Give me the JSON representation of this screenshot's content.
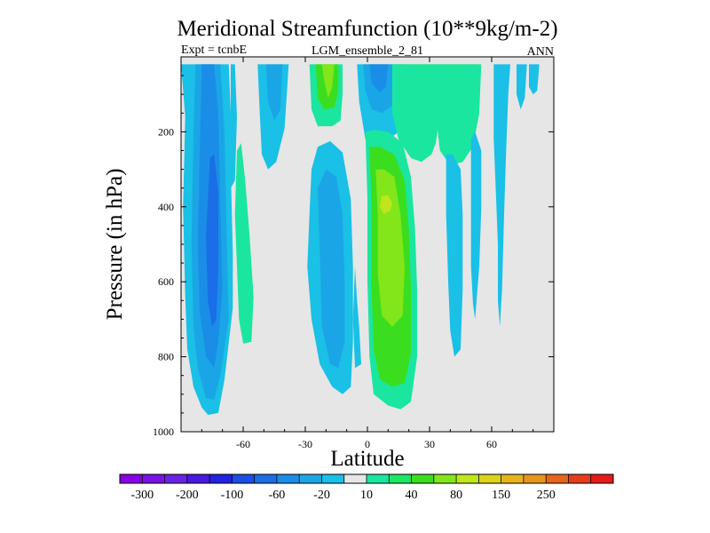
{
  "chart_data": {
    "type": "heatmap",
    "title": "Meridional Streamfunction (10**9kg/m-2)",
    "left_label": "Expt = tcnbE",
    "center_label": "LGM_ensemble_2_81",
    "right_label": "ANN",
    "xlabel": "Latitude",
    "ylabel": "Pressure (in hPa)",
    "xlim": [
      -90,
      90
    ],
    "ylim": [
      0,
      1000
    ],
    "y_inverted": true,
    "xticks": [
      -60,
      -30,
      0,
      30,
      60
    ],
    "xtick_labels": [
      "-60",
      "-30",
      "0",
      "30",
      "60"
    ],
    "yticks": [
      200,
      400,
      600,
      800,
      1000
    ],
    "ytick_labels": [
      "200",
      "400",
      "600",
      "800",
      "1000"
    ],
    "background_color": "#e6e6e6",
    "colorbar": {
      "colors": [
        "#8a00e6",
        "#7a12e6",
        "#6a22e6",
        "#4a1ae0",
        "#2222e0",
        "#1a4ee6",
        "#1a6ee6",
        "#1a8ee6",
        "#1aa6e6",
        "#1ac0e6",
        "#e6e6e6",
        "#1ae6a0",
        "#1ee664",
        "#3ade1e",
        "#82e61a",
        "#bee61a",
        "#dcd21a",
        "#e6b41a",
        "#e6961a",
        "#e6641a",
        "#e63c1a",
        "#e61a1a"
      ],
      "tick_labels": [
        "-300",
        "-200",
        "-100",
        "-60",
        "-20",
        "10",
        "40",
        "80",
        "150",
        "250"
      ]
    },
    "regions": [
      {
        "name": "sh-cell-level-1",
        "color": "#1ac0e6",
        "points": [
          [
            -90,
            20
          ],
          [
            -88,
            160
          ],
          [
            -89,
            400
          ],
          [
            -88,
            640
          ],
          [
            -87,
            780
          ],
          [
            -84,
            880
          ],
          [
            -80,
            935
          ],
          [
            -77,
            955
          ],
          [
            -72,
            950
          ],
          [
            -69,
            860
          ],
          [
            -65,
            670
          ],
          [
            -65,
            520
          ],
          [
            -66,
            300
          ],
          [
            -66,
            150
          ],
          [
            -67,
            20
          ]
        ]
      },
      {
        "name": "sh-cell-level-2",
        "color": "#1aa6e6",
        "points": [
          [
            -83,
            20
          ],
          [
            -84,
            200
          ],
          [
            -85,
            500
          ],
          [
            -84,
            720
          ],
          [
            -82,
            830
          ],
          [
            -78,
            910
          ],
          [
            -74,
            915
          ],
          [
            -71,
            850
          ],
          [
            -67,
            700
          ],
          [
            -68,
            450
          ],
          [
            -69,
            200
          ],
          [
            -71,
            20
          ]
        ]
      },
      {
        "name": "sh-cell-level-3",
        "color": "#1a8ee6",
        "points": [
          [
            -80,
            20
          ],
          [
            -81,
            250
          ],
          [
            -82,
            500
          ],
          [
            -81,
            680
          ],
          [
            -78,
            800
          ],
          [
            -74,
            830
          ],
          [
            -72,
            760
          ],
          [
            -70,
            620
          ],
          [
            -71,
            400
          ],
          [
            -72,
            150
          ],
          [
            -74,
            20
          ]
        ]
      },
      {
        "name": "sh-cell-level-4",
        "color": "#1a6ee6",
        "points": [
          [
            -76,
            270
          ],
          [
            -78,
            480
          ],
          [
            -77,
            650
          ],
          [
            -75,
            720
          ],
          [
            -73,
            700
          ],
          [
            -72,
            560
          ],
          [
            -72,
            360
          ],
          [
            -74,
            260
          ]
        ]
      },
      {
        "name": "sh-band-south-60",
        "color": "#1ac0e6",
        "points": [
          [
            -66,
            20
          ],
          [
            -66,
            350
          ],
          [
            -64,
            330
          ],
          [
            -63,
            160
          ],
          [
            -64,
            20
          ]
        ]
      },
      {
        "name": "sh-band-south-60-green",
        "color": "#1ae6a0",
        "points": [
          [
            -63,
            250
          ],
          [
            -64,
            420
          ],
          [
            -63,
            560
          ],
          [
            -62,
            700
          ],
          [
            -60,
            765
          ],
          [
            -56,
            760
          ],
          [
            -55,
            640
          ],
          [
            -57,
            470
          ],
          [
            -59,
            330
          ],
          [
            -61,
            230
          ]
        ]
      },
      {
        "name": "sh-band-40s",
        "color": "#1ac0e6",
        "points": [
          [
            -53,
            20
          ],
          [
            -52,
            150
          ],
          [
            -51,
            260
          ],
          [
            -48,
            300
          ],
          [
            -44,
            280
          ],
          [
            -40,
            190
          ],
          [
            -38,
            20
          ]
        ]
      },
      {
        "name": "sh-band-40s-inner",
        "color": "#1aa6e6",
        "points": [
          [
            -49,
            20
          ],
          [
            -48,
            120
          ],
          [
            -45,
            170
          ],
          [
            -42,
            140
          ],
          [
            -41,
            20
          ]
        ]
      },
      {
        "name": "sh-subtrop-green",
        "color": "#1ae6a0",
        "points": [
          [
            -28,
            20
          ],
          [
            -27,
            140
          ],
          [
            -24,
            185
          ],
          [
            -17,
            185
          ],
          [
            -13,
            170
          ],
          [
            -12,
            100
          ],
          [
            -12,
            20
          ]
        ]
      },
      {
        "name": "sh-subtrop-green-2",
        "color": "#3ade1e",
        "points": [
          [
            -25,
            20
          ],
          [
            -24,
            110
          ],
          [
            -21,
            140
          ],
          [
            -16,
            135
          ],
          [
            -14,
            90
          ],
          [
            -14,
            20
          ]
        ]
      },
      {
        "name": "sh-subtrop-green-3",
        "color": "#82e61a",
        "points": [
          [
            -22,
            20
          ],
          [
            -21,
            60
          ],
          [
            -19,
            110
          ],
          [
            -17,
            80
          ],
          [
            -16,
            20
          ]
        ]
      },
      {
        "name": "sh-tropics-blue",
        "color": "#1ac0e6",
        "points": [
          [
            -28,
            420
          ],
          [
            -27,
            300
          ],
          [
            -24,
            240
          ],
          [
            -18,
            225
          ],
          [
            -12,
            255
          ],
          [
            -8,
            380
          ],
          [
            -7,
            560
          ],
          [
            -7,
            760
          ],
          [
            -8,
            880
          ],
          [
            -12,
            900
          ],
          [
            -17,
            880
          ],
          [
            -23,
            820
          ],
          [
            -27,
            700
          ],
          [
            -29,
            560
          ]
        ]
      },
      {
        "name": "sh-tropics-blue-2",
        "color": "#1aa6e6",
        "points": [
          [
            -23,
            520
          ],
          [
            -24,
            350
          ],
          [
            -20,
            300
          ],
          [
            -15,
            320
          ],
          [
            -12,
            420
          ],
          [
            -11,
            600
          ],
          [
            -11,
            760
          ],
          [
            -14,
            830
          ],
          [
            -18,
            820
          ],
          [
            -22,
            720
          ]
        ]
      },
      {
        "name": "eq-thin-blue",
        "color": "#1ac0e6",
        "points": [
          [
            -6,
            560
          ],
          [
            -5,
            650
          ],
          [
            -4,
            720
          ],
          [
            -3,
            820
          ],
          [
            -6,
            830
          ],
          [
            -7,
            700
          ]
        ]
      },
      {
        "name": "nh-upper-blue",
        "color": "#1ac0e6",
        "points": [
          [
            -5,
            20
          ],
          [
            -4,
            120
          ],
          [
            -1,
            220
          ],
          [
            5,
            240
          ],
          [
            8,
            230
          ],
          [
            15,
            200
          ],
          [
            18,
            120
          ],
          [
            18,
            20
          ]
        ]
      },
      {
        "name": "nh-upper-blue-2",
        "color": "#1aa6e6",
        "points": [
          [
            -2,
            20
          ],
          [
            -1,
            90
          ],
          [
            2,
            140
          ],
          [
            7,
            150
          ],
          [
            12,
            130
          ],
          [
            14,
            60
          ],
          [
            14,
            20
          ]
        ]
      },
      {
        "name": "nh-upper-blue-3",
        "color": "#1a8ee6",
        "points": [
          [
            1,
            20
          ],
          [
            2,
            70
          ],
          [
            6,
            95
          ],
          [
            9,
            80
          ],
          [
            10,
            20
          ]
        ]
      },
      {
        "name": "nh-tropics-green-1",
        "color": "#1ae6a0",
        "points": [
          [
            -1,
            200
          ],
          [
            0,
            380
          ],
          [
            0,
            600
          ],
          [
            1,
            800
          ],
          [
            3,
            900
          ],
          [
            10,
            930
          ],
          [
            16,
            940
          ],
          [
            21,
            920
          ],
          [
            24,
            800
          ],
          [
            24,
            620
          ],
          [
            23,
            460
          ],
          [
            21,
            320
          ],
          [
            17,
            230
          ],
          [
            10,
            200
          ],
          [
            3,
            195
          ]
        ]
      },
      {
        "name": "nh-tropics-green-2",
        "color": "#3ade1e",
        "points": [
          [
            1,
            240
          ],
          [
            2,
            400
          ],
          [
            2,
            620
          ],
          [
            3,
            780
          ],
          [
            6,
            860
          ],
          [
            12,
            880
          ],
          [
            18,
            870
          ],
          [
            21,
            790
          ],
          [
            21,
            620
          ],
          [
            20,
            460
          ],
          [
            18,
            330
          ],
          [
            13,
            260
          ],
          [
            6,
            240
          ]
        ]
      },
      {
        "name": "nh-tropics-green-3",
        "color": "#82e61a",
        "points": [
          [
            4,
            300
          ],
          [
            5,
            420
          ],
          [
            5,
            580
          ],
          [
            7,
            690
          ],
          [
            12,
            720
          ],
          [
            17,
            690
          ],
          [
            18,
            560
          ],
          [
            16,
            420
          ],
          [
            13,
            320
          ],
          [
            8,
            300
          ]
        ]
      },
      {
        "name": "nh-tropics-yellow",
        "color": "#bee61a",
        "points": [
          [
            6,
            400
          ],
          [
            8,
            420
          ],
          [
            11,
            410
          ],
          [
            12,
            390
          ],
          [
            10,
            370
          ],
          [
            7,
            370
          ]
        ]
      },
      {
        "name": "nh-upper-green",
        "color": "#3ade1e",
        "points": [
          [
            15,
            20
          ],
          [
            16,
            110
          ],
          [
            18,
            200
          ],
          [
            22,
            250
          ],
          [
            26,
            260
          ],
          [
            30,
            240
          ],
          [
            32,
            200
          ],
          [
            33,
            120
          ],
          [
            33,
            20
          ]
        ]
      },
      {
        "name": "nh-upper-green-outer",
        "color": "#1ae6a0",
        "points": [
          [
            12,
            20
          ],
          [
            12,
            150
          ],
          [
            15,
            220
          ],
          [
            21,
            270
          ],
          [
            26,
            280
          ],
          [
            31,
            260
          ],
          [
            33,
            230
          ],
          [
            35,
            150
          ],
          [
            36,
            20
          ]
        ]
      },
      {
        "name": "nh-midlat-green",
        "color": "#3ade1e",
        "points": [
          [
            36,
            20
          ],
          [
            35,
            120
          ],
          [
            36,
            220
          ],
          [
            40,
            250
          ],
          [
            45,
            240
          ],
          [
            49,
            210
          ],
          [
            52,
            130
          ],
          [
            53,
            20
          ]
        ]
      },
      {
        "name": "nh-midlat-green-outer",
        "color": "#1ae6a0",
        "points": [
          [
            34,
            20
          ],
          [
            33,
            150
          ],
          [
            35,
            250
          ],
          [
            40,
            290
          ],
          [
            46,
            280
          ],
          [
            51,
            240
          ],
          [
            54,
            150
          ],
          [
            55,
            20
          ]
        ]
      },
      {
        "name": "nh-midlat-blue",
        "color": "#1ac0e6",
        "points": [
          [
            38,
            260
          ],
          [
            38,
            420
          ],
          [
            39,
            600
          ],
          [
            40,
            730
          ],
          [
            42,
            800
          ],
          [
            45,
            780
          ],
          [
            46,
            620
          ],
          [
            46,
            420
          ],
          [
            45,
            300
          ],
          [
            41,
            260
          ]
        ]
      },
      {
        "name": "nh-40-blue",
        "color": "#1ac0e6",
        "points": [
          [
            50,
            220
          ],
          [
            50,
            400
          ],
          [
            50,
            560
          ],
          [
            51,
            660
          ],
          [
            52,
            700
          ],
          [
            54,
            560
          ],
          [
            55,
            400
          ],
          [
            55,
            250
          ],
          [
            52,
            200
          ]
        ]
      },
      {
        "name": "nh-60-blue",
        "color": "#1ac0e6",
        "points": [
          [
            61,
            20
          ],
          [
            61,
            220
          ],
          [
            62,
            360
          ],
          [
            63,
            500
          ],
          [
            63,
            650
          ],
          [
            64,
            720
          ],
          [
            65,
            620
          ],
          [
            66,
            420
          ],
          [
            67,
            250
          ],
          [
            68,
            100
          ],
          [
            69,
            20
          ]
        ]
      },
      {
        "name": "nh-75-blue",
        "color": "#1ac0e6",
        "points": [
          [
            72,
            20
          ],
          [
            72,
            100
          ],
          [
            74,
            140
          ],
          [
            76,
            110
          ],
          [
            77,
            20
          ]
        ]
      },
      {
        "name": "nh-polar-blue-edge",
        "color": "#1ac0e6",
        "points": [
          [
            78,
            20
          ],
          [
            78,
            80
          ],
          [
            80,
            100
          ],
          [
            82,
            90
          ],
          [
            83,
            20
          ]
        ]
      }
    ]
  }
}
